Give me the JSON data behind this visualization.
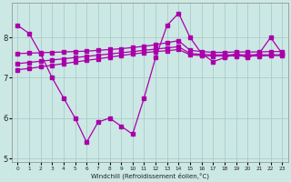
{
  "x": [
    0,
    1,
    2,
    3,
    4,
    5,
    6,
    7,
    8,
    9,
    10,
    11,
    12,
    13,
    14,
    15,
    16,
    17,
    18,
    19,
    20,
    21,
    22,
    23
  ],
  "line1": [
    8.3,
    8.1,
    7.6,
    7.0,
    6.5,
    6.0,
    5.4,
    5.9,
    6.0,
    5.8,
    5.6,
    6.5,
    7.5,
    8.3,
    8.6,
    8.0,
    7.6,
    7.4,
    7.5,
    7.6,
    7.5,
    7.6,
    8.0,
    7.6
  ],
  "line2": [
    7.6,
    7.61,
    7.62,
    7.63,
    7.64,
    7.65,
    7.66,
    7.68,
    7.7,
    7.72,
    7.75,
    7.78,
    7.82,
    7.87,
    7.92,
    7.68,
    7.65,
    7.63,
    7.63,
    7.64,
    7.64,
    7.64,
    7.65,
    7.65
  ],
  "line3": [
    7.35,
    7.38,
    7.41,
    7.44,
    7.47,
    7.5,
    7.53,
    7.56,
    7.59,
    7.62,
    7.65,
    7.68,
    7.71,
    7.74,
    7.77,
    7.6,
    7.58,
    7.57,
    7.57,
    7.57,
    7.57,
    7.57,
    7.57,
    7.57
  ],
  "line4": [
    7.2,
    7.23,
    7.27,
    7.31,
    7.35,
    7.39,
    7.43,
    7.47,
    7.51,
    7.55,
    7.59,
    7.62,
    7.65,
    7.67,
    7.7,
    7.57,
    7.55,
    7.54,
    7.54,
    7.54,
    7.54,
    7.54,
    7.55,
    7.55
  ],
  "background_color": "#cce8e4",
  "line_color": "#aa00aa",
  "grid_color": "#aacccc",
  "xlabel": "Windchill (Refroidissement éolien,°C)",
  "ylim": [
    4.9,
    8.85
  ],
  "xlim": [
    -0.5,
    23.5
  ],
  "yticks": [
    5,
    6,
    7,
    8
  ],
  "xticks": [
    0,
    1,
    2,
    3,
    4,
    5,
    6,
    7,
    8,
    9,
    10,
    11,
    12,
    13,
    14,
    15,
    16,
    17,
    18,
    19,
    20,
    21,
    22,
    23
  ]
}
